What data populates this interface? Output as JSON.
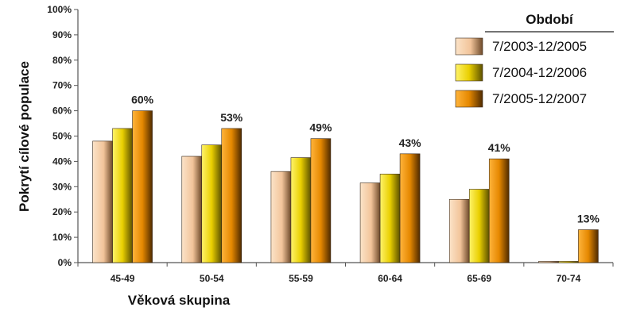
{
  "chart_data": {
    "type": "bar",
    "categories": [
      "45-49",
      "50-54",
      "55-59",
      "60-64",
      "65-69",
      "70-74"
    ],
    "series": [
      {
        "name": "7/2003-12/2005",
        "values": [
          48,
          42,
          36,
          31.5,
          25,
          0.5
        ],
        "color": "#f2c49a"
      },
      {
        "name": "7/2004-12/2006",
        "values": [
          53,
          46.5,
          41.5,
          35,
          29,
          0.5
        ],
        "color": "#f0d400"
      },
      {
        "name": "7/2005-12/2007",
        "values": [
          60,
          53,
          49,
          43,
          41,
          13
        ],
        "color": "#f08c00"
      }
    ],
    "data_labels": [
      "60%",
      "53%",
      "49%",
      "43%",
      "41%",
      "13%"
    ],
    "yticks": [
      "0%",
      "10%",
      "20%",
      "30%",
      "40%",
      "50%",
      "60%",
      "70%",
      "80%",
      "90%",
      "100%"
    ],
    "ylim": [
      0,
      100
    ],
    "xlabel": "Věková skupina",
    "ylabel": "Pokrytí cílové populace",
    "legend_title": "Období",
    "legend_position": "top-right",
    "grid": false
  }
}
